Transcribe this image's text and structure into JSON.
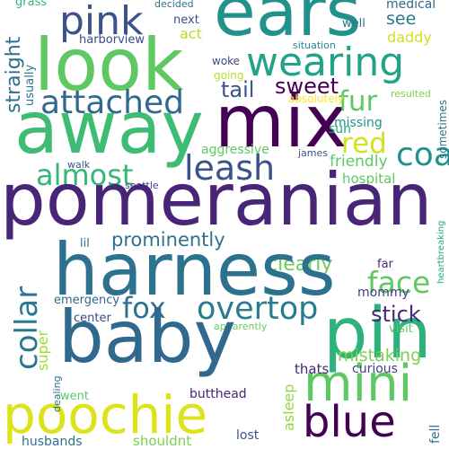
{
  "words": [
    {
      "text": "grass",
      "color": "#35b779"
    },
    {
      "text": "decided",
      "color": "#2c728e"
    },
    {
      "text": "medical",
      "color": "#31688e"
    },
    {
      "text": "ears",
      "color": "#21918c"
    },
    {
      "text": "pink",
      "color": "#3b528b"
    },
    {
      "text": "wearing",
      "color": "#20a386"
    },
    {
      "text": "look",
      "color": "#5ec962"
    },
    {
      "text": "next",
      "color": "#3e4989"
    },
    {
      "text": "harborview",
      "color": "#3e4989"
    },
    {
      "text": "see",
      "color": "#2a788e"
    },
    {
      "text": "act",
      "color": "#b5de2b"
    },
    {
      "text": "daddy",
      "color": "#d0e11c"
    },
    {
      "text": "well",
      "color": "#2c728e"
    },
    {
      "text": "situation",
      "color": "#26828e"
    },
    {
      "text": "mix",
      "color": "#440154"
    },
    {
      "text": "attached",
      "color": "#31688e"
    },
    {
      "text": "fur",
      "color": "#5ec962"
    },
    {
      "text": "sweet",
      "color": "#440154"
    },
    {
      "text": "tail",
      "color": "#3b528b"
    },
    {
      "text": "woke",
      "color": "#3e4989"
    },
    {
      "text": "going",
      "color": "#bddf26"
    },
    {
      "text": "absolutely",
      "color": "#fde725"
    },
    {
      "text": "resulted",
      "color": "#7ad151"
    },
    {
      "text": "missing",
      "color": "#21918c"
    },
    {
      "text": "sun",
      "color": "#22a884"
    },
    {
      "text": "away",
      "color": "#3fbc73"
    },
    {
      "text": "red",
      "color": "#d2e21b"
    },
    {
      "text": "leash",
      "color": "#3b528b"
    },
    {
      "text": "coat",
      "color": "#21918c"
    },
    {
      "text": "friendly",
      "color": "#5ec962"
    },
    {
      "text": "aggressive",
      "color": "#5ec962"
    },
    {
      "text": "james",
      "color": "#3b528b"
    },
    {
      "text": "almost",
      "color": "#35b779"
    },
    {
      "text": "walk",
      "color": "#3b528b"
    },
    {
      "text": "hospital",
      "color": "#5ec962"
    },
    {
      "text": "seattle",
      "color": "#3e4989"
    },
    {
      "text": "pomeranian",
      "color": "#482576"
    },
    {
      "text": "prominently",
      "color": "#2c728e"
    },
    {
      "text": "clearly",
      "color": "#6ece58"
    },
    {
      "text": "face",
      "color": "#5ec962"
    },
    {
      "text": "harness",
      "color": "#2c728e"
    },
    {
      "text": "lil",
      "color": "#2c728e"
    },
    {
      "text": "far",
      "color": "#482576"
    },
    {
      "text": "fox",
      "color": "#2c728e"
    },
    {
      "text": "overtop",
      "color": "#287c8e"
    },
    {
      "text": "mommy",
      "color": "#433e85"
    },
    {
      "text": "pin",
      "color": "#2db27d"
    },
    {
      "text": "stick",
      "color": "#482878"
    },
    {
      "text": "emergency",
      "color": "#31688e"
    },
    {
      "text": "visit",
      "color": "#5ec962"
    },
    {
      "text": "center",
      "color": "#3e4989"
    },
    {
      "text": "apparently",
      "color": "#6ece58"
    },
    {
      "text": "mistaking",
      "color": "#7ad151"
    },
    {
      "text": "baby",
      "color": "#31688e"
    },
    {
      "text": "mini",
      "color": "#5ec962"
    },
    {
      "text": "thats",
      "color": "#482576"
    },
    {
      "text": "curious",
      "color": "#433e85"
    },
    {
      "text": "went",
      "color": "#5ec962"
    },
    {
      "text": "butthead",
      "color": "#482576"
    },
    {
      "text": "blue",
      "color": "#440154"
    },
    {
      "text": "poochie",
      "color": "#dde318"
    },
    {
      "text": "lost",
      "color": "#3b528b"
    },
    {
      "text": "husbands",
      "color": "#2c728e"
    },
    {
      "text": "shouldnt",
      "color": "#7ad151"
    },
    {
      "text": "straight",
      "color": "#2c728e"
    },
    {
      "text": "usually",
      "color": "#2a788e"
    },
    {
      "text": "collar",
      "color": "#2a788e"
    },
    {
      "text": "super",
      "color": "#a0da39"
    },
    {
      "text": "dealing",
      "color": "#2c728e"
    },
    {
      "text": "asleep",
      "color": "#90d743"
    },
    {
      "text": "fell",
      "color": "#2c728e"
    },
    {
      "text": "heartbreaking",
      "color": "#22a884"
    },
    {
      "text": "sometimes",
      "color": "#2c728e"
    }
  ]
}
